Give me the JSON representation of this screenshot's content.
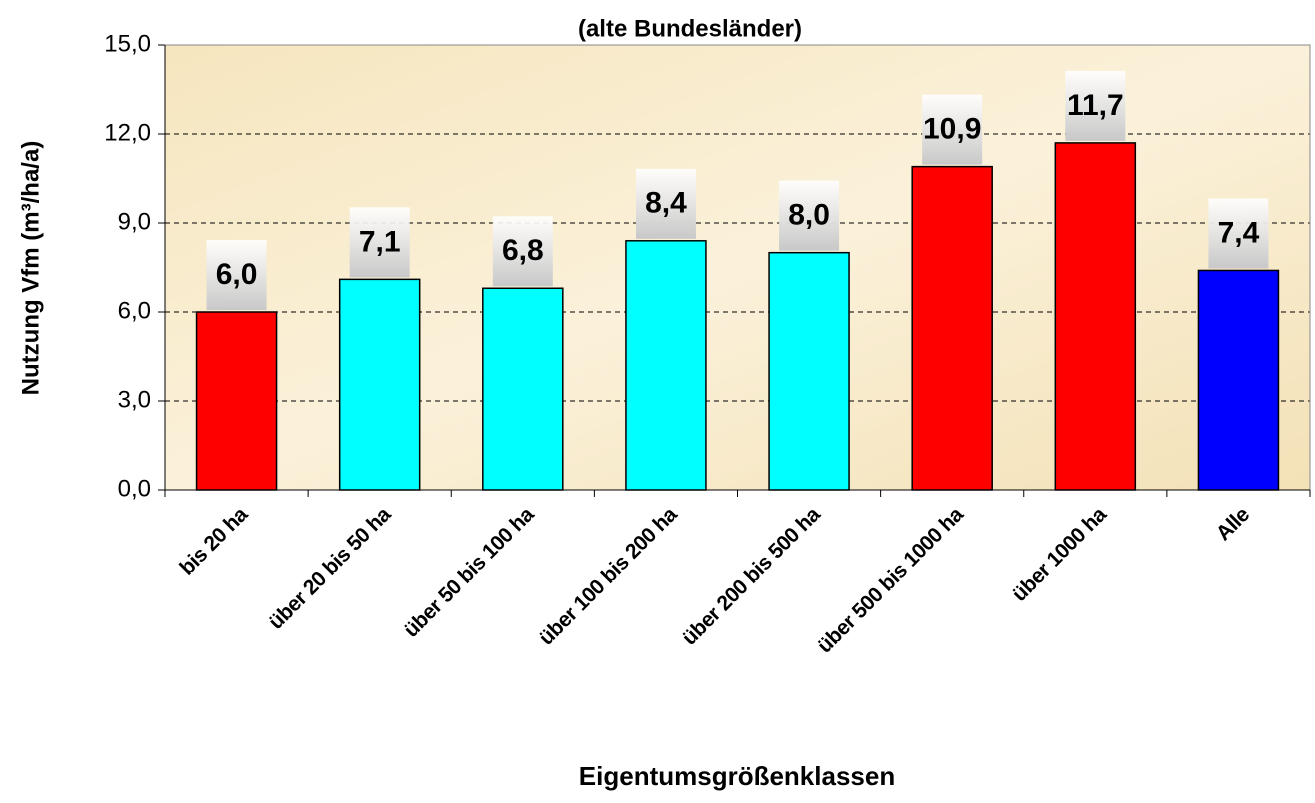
{
  "chart_data": {
    "type": "bar",
    "title": "(alte Bundesländer)",
    "y_label": "Nutzung Vfm (m³/ha/a)",
    "x_label": "Eigentumsgrößenklassen",
    "categories": [
      "bis 20 ha",
      "über 20 bis 50 ha",
      "über 50 bis 100 ha",
      "über 100 bis 200 ha",
      "über 200 bis 500 ha",
      "über 500 bis 1000 ha",
      "über 1000 ha",
      "Alle"
    ],
    "values": [
      6.0,
      7.1,
      6.8,
      8.4,
      8.0,
      10.9,
      11.7,
      7.4
    ],
    "value_labels": [
      "6,0",
      "7,1",
      "6,8",
      "8,4",
      "8,0",
      "10,9",
      "11,7",
      "7,4"
    ],
    "colors": [
      "#ff0000",
      "#00ffff",
      "#00ffff",
      "#00ffff",
      "#00ffff",
      "#ff0000",
      "#ff0000",
      "#0000ff"
    ],
    "ylim": [
      0,
      15
    ],
    "yticks": [
      {
        "value": 0,
        "label": "0,0"
      },
      {
        "value": 3,
        "label": "3,0"
      },
      {
        "value": 6,
        "label": "6,0"
      },
      {
        "value": 9,
        "label": "9,0"
      },
      {
        "value": 12,
        "label": "12,0"
      },
      {
        "value": 15,
        "label": "15,0"
      }
    ],
    "grid": true
  }
}
